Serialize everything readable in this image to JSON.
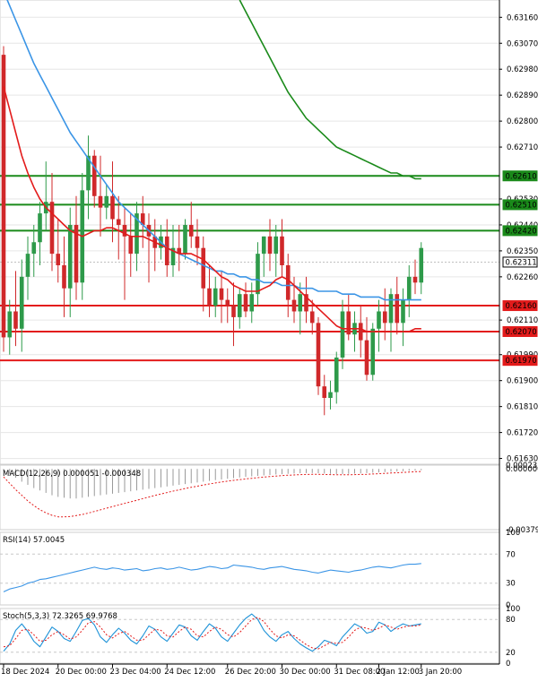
{
  "chart_data": {
    "type": "candlestick",
    "colors": {
      "bull": "#2e9a4a",
      "bear": "#d0282a",
      "ma_fast": "#e31b1b",
      "ma_mid": "#3b95e6",
      "ma_slow": "#1a8a1a",
      "resistance": "#1a8a1a",
      "support": "#e31b1b",
      "macd_hist": "#9a9a9a",
      "macd_signal": "#e31b1b",
      "rsi": "#3b95e6",
      "stoch_main": "#1f93d8",
      "stoch_signal": "#e31b1b",
      "grid": "#e6e6e6"
    },
    "price_axis": {
      "ylim": [
        0.6161,
        0.6322
      ],
      "ticks": [
        "0.63160",
        "0.63070",
        "0.62980",
        "0.62890",
        "0.62800",
        "0.62710",
        "0.62530",
        "0.62440",
        "0.62350",
        "0.62260",
        "0.62110",
        "0.61990",
        "0.61900",
        "0.61810",
        "0.61720",
        "0.61630"
      ]
    },
    "price_labels": [
      {
        "text": "0.62610",
        "value": 0.6261,
        "color": "#1a8a1a"
      },
      {
        "text": "0.62510",
        "value": 0.6251,
        "color": "#1a8a1a"
      },
      {
        "text": "0.62420",
        "value": 0.6242,
        "color": "#1a8a1a"
      },
      {
        "text": "0.62311",
        "value": 0.62311,
        "color": "#ffffff"
      },
      {
        "text": "0.62160",
        "value": 0.6216,
        "color": "#e31b1b"
      },
      {
        "text": "0.62070",
        "value": 0.6207,
        "color": "#e31b1b"
      },
      {
        "text": "0.61970",
        "value": 0.6197,
        "color": "#e31b1b"
      }
    ],
    "resistance_levels": [
      0.6261,
      0.6251,
      0.6242
    ],
    "support_levels": [
      0.6216,
      0.6207,
      0.6197
    ],
    "current_price": 0.62311,
    "candles": [
      [
        0.6303,
        0.6306,
        0.62,
        0.6205
      ],
      [
        0.6205,
        0.6218,
        0.6199,
        0.6214
      ],
      [
        0.6214,
        0.6228,
        0.6202,
        0.6208
      ],
      [
        0.6208,
        0.6232,
        0.62,
        0.6226
      ],
      [
        0.6226,
        0.624,
        0.6218,
        0.6234
      ],
      [
        0.6234,
        0.6244,
        0.6226,
        0.6238
      ],
      [
        0.6238,
        0.6252,
        0.623,
        0.6248
      ],
      [
        0.6248,
        0.6266,
        0.6242,
        0.6252
      ],
      [
        0.6252,
        0.6262,
        0.6228,
        0.6234
      ],
      [
        0.6234,
        0.6246,
        0.6224,
        0.623
      ],
      [
        0.623,
        0.624,
        0.6212,
        0.6222
      ],
      [
        0.6222,
        0.625,
        0.6212,
        0.6244
      ],
      [
        0.6244,
        0.6254,
        0.6218,
        0.6224
      ],
      [
        0.6224,
        0.6262,
        0.6218,
        0.6256
      ],
      [
        0.6256,
        0.6275,
        0.6246,
        0.6268
      ],
      [
        0.6268,
        0.627,
        0.625,
        0.6254
      ],
      [
        0.6254,
        0.6268,
        0.624,
        0.625
      ],
      [
        0.625,
        0.6258,
        0.6246,
        0.6254
      ],
      [
        0.6254,
        0.6266,
        0.6238,
        0.6246
      ],
      [
        0.6246,
        0.6254,
        0.6232,
        0.6244
      ],
      [
        0.6244,
        0.625,
        0.6218,
        0.624
      ],
      [
        0.624,
        0.6248,
        0.6226,
        0.6234
      ],
      [
        0.6234,
        0.6252,
        0.6228,
        0.6248
      ],
      [
        0.6248,
        0.6254,
        0.6236,
        0.6244
      ],
      [
        0.6244,
        0.6248,
        0.6224,
        0.624
      ],
      [
        0.624,
        0.6246,
        0.6228,
        0.6236
      ],
      [
        0.6236,
        0.6244,
        0.6232,
        0.624
      ],
      [
        0.624,
        0.6246,
        0.6226,
        0.623
      ],
      [
        0.623,
        0.6244,
        0.6226,
        0.6236
      ],
      [
        0.6236,
        0.6244,
        0.6228,
        0.6234
      ],
      [
        0.6234,
        0.6246,
        0.6232,
        0.6244
      ],
      [
        0.6244,
        0.6252,
        0.6236,
        0.624
      ],
      [
        0.624,
        0.6246,
        0.623,
        0.6236
      ],
      [
        0.6236,
        0.624,
        0.6214,
        0.6222
      ],
      [
        0.6222,
        0.623,
        0.6212,
        0.6216
      ],
      [
        0.6216,
        0.6226,
        0.6212,
        0.6222
      ],
      [
        0.6222,
        0.6228,
        0.621,
        0.6218
      ],
      [
        0.6218,
        0.6222,
        0.621,
        0.6216
      ],
      [
        0.6216,
        0.6224,
        0.6202,
        0.6212
      ],
      [
        0.6212,
        0.6222,
        0.6208,
        0.622
      ],
      [
        0.622,
        0.6224,
        0.6212,
        0.6214
      ],
      [
        0.6214,
        0.6224,
        0.621,
        0.622
      ],
      [
        0.622,
        0.6238,
        0.6216,
        0.6234
      ],
      [
        0.6234,
        0.624,
        0.6226,
        0.624
      ],
      [
        0.624,
        0.6246,
        0.6228,
        0.6234
      ],
      [
        0.6234,
        0.6244,
        0.6226,
        0.624
      ],
      [
        0.624,
        0.6246,
        0.6226,
        0.623
      ],
      [
        0.623,
        0.6234,
        0.6212,
        0.6218
      ],
      [
        0.6218,
        0.6226,
        0.621,
        0.6214
      ],
      [
        0.6214,
        0.6224,
        0.6206,
        0.622
      ],
      [
        0.622,
        0.6226,
        0.621,
        0.6214
      ],
      [
        0.6214,
        0.6218,
        0.6206,
        0.621
      ],
      [
        0.621,
        0.6212,
        0.6185,
        0.6188
      ],
      [
        0.6188,
        0.6192,
        0.6178,
        0.6184
      ],
      [
        0.6184,
        0.619,
        0.618,
        0.6186
      ],
      [
        0.6186,
        0.62,
        0.6182,
        0.6198
      ],
      [
        0.6198,
        0.6218,
        0.6194,
        0.6214
      ],
      [
        0.6214,
        0.622,
        0.6204,
        0.6206
      ],
      [
        0.6206,
        0.6214,
        0.62,
        0.621
      ],
      [
        0.621,
        0.6216,
        0.6198,
        0.6204
      ],
      [
        0.6204,
        0.6212,
        0.619,
        0.6192
      ],
      [
        0.6192,
        0.621,
        0.619,
        0.6208
      ],
      [
        0.6208,
        0.6218,
        0.62,
        0.6214
      ],
      [
        0.6214,
        0.6222,
        0.6204,
        0.621
      ],
      [
        0.621,
        0.6222,
        0.62,
        0.622
      ],
      [
        0.622,
        0.6226,
        0.6206,
        0.621
      ],
      [
        0.621,
        0.6222,
        0.6202,
        0.6218
      ],
      [
        0.6218,
        0.623,
        0.6212,
        0.6226
      ],
      [
        0.6226,
        0.6232,
        0.622,
        0.6224
      ],
      [
        0.6224,
        0.6238,
        0.622,
        0.6236
      ]
    ],
    "ma_fast": [
      0.6292,
      0.6284,
      0.6276,
      0.6268,
      0.6262,
      0.6257,
      0.6253,
      0.625,
      0.6248,
      0.6246,
      0.6244,
      0.6242,
      0.6241,
      0.624,
      0.6241,
      0.6242,
      0.6242,
      0.6243,
      0.6243,
      0.6242,
      0.6241,
      0.624,
      0.624,
      0.624,
      0.6239,
      0.6238,
      0.6237,
      0.6236,
      0.6235,
      0.6234,
      0.6234,
      0.6234,
      0.6233,
      0.6232,
      0.623,
      0.6228,
      0.6226,
      0.6225,
      0.6223,
      0.6222,
      0.6221,
      0.6221,
      0.6221,
      0.6222,
      0.6223,
      0.6225,
      0.6226,
      0.6225,
      0.6223,
      0.6221,
      0.6219,
      0.6217,
      0.6215,
      0.6213,
      0.6211,
      0.6209,
      0.6208,
      0.6208,
      0.6208,
      0.6208,
      0.6207,
      0.6207,
      0.6207,
      0.6207,
      0.6207,
      0.6207,
      0.6207,
      0.6207,
      0.6208,
      0.6208
    ],
    "ma_mid": [
      0.6325,
      0.632,
      0.6315,
      0.631,
      0.6305,
      0.63,
      0.6296,
      0.6292,
      0.6288,
      0.6284,
      0.628,
      0.6276,
      0.6273,
      0.627,
      0.6267,
      0.6264,
      0.6261,
      0.6258,
      0.6255,
      0.6252,
      0.625,
      0.6248,
      0.6246,
      0.6244,
      0.6242,
      0.624,
      0.6238,
      0.6236,
      0.6235,
      0.6234,
      0.6233,
      0.6232,
      0.6231,
      0.623,
      0.6229,
      0.6228,
      0.6228,
      0.6227,
      0.6227,
      0.6226,
      0.6226,
      0.6225,
      0.6225,
      0.6224,
      0.6224,
      0.6224,
      0.6223,
      0.6223,
      0.6223,
      0.6222,
      0.6222,
      0.6222,
      0.6221,
      0.6221,
      0.6221,
      0.6221,
      0.622,
      0.622,
      0.622,
      0.6219,
      0.6219,
      0.6219,
      0.6219,
      0.6218,
      0.6218,
      0.6218,
      0.6218,
      0.6218,
      0.6218,
      0.6218
    ],
    "ma_slow_span": [
      39,
      69
    ],
    "ma_slow": [
      0.6322,
      0.6318,
      0.6314,
      0.631,
      0.6306,
      0.6302,
      0.6298,
      0.6294,
      0.629,
      0.6287,
      0.6284,
      0.6281,
      0.6279,
      0.6277,
      0.6275,
      0.6273,
      0.6271,
      0.627,
      0.6269,
      0.6268,
      0.6267,
      0.6266,
      0.6265,
      0.6264,
      0.6263,
      0.6262,
      0.6262,
      0.6261,
      0.6261,
      0.626,
      0.626
    ],
    "macd": {
      "label": "MACD(12,26,9) 0.000051 -0.000348",
      "ylim": [
        -0.003799,
        0.000235
      ],
      "ticks": [
        "0.000235",
        "0.000000",
        "-0.003799"
      ],
      "hist": [
        -0.0001,
        -0.0003,
        -0.00055,
        -0.0008,
        -0.001,
        -0.0012,
        -0.00135,
        -0.0015,
        -0.00165,
        -0.00175,
        -0.0018,
        -0.00185,
        -0.00185,
        -0.0018,
        -0.00175,
        -0.0017,
        -0.00165,
        -0.0016,
        -0.00155,
        -0.0015,
        -0.00145,
        -0.0014,
        -0.00135,
        -0.0013,
        -0.00125,
        -0.0012,
        -0.00115,
        -0.0011,
        -0.00105,
        -0.001,
        -0.00095,
        -0.0009,
        -0.00085,
        -0.0008,
        -0.00075,
        -0.0007,
        -0.00066,
        -0.00062,
        -0.00058,
        -0.00054,
        -0.0005,
        -0.00047,
        -0.00044,
        -0.00041,
        -0.00038,
        -0.00035,
        -0.00033,
        -0.00031,
        -0.00029,
        -0.00027,
        -0.00026,
        -0.00026,
        -0.00027,
        -0.00029,
        -0.00031,
        -0.00032,
        -0.00032,
        -0.00031,
        -0.0003,
        -0.00028,
        -0.00026,
        -0.00024,
        -0.00022,
        -0.0002,
        -0.00018,
        -0.00016,
        -0.00014,
        -0.00012,
        -0.0001,
        -8e-05
      ],
      "signal": [
        -0.0005,
        -0.0009,
        -0.0013,
        -0.00165,
        -0.002,
        -0.0023,
        -0.00255,
        -0.00275,
        -0.0029,
        -0.003,
        -0.003,
        -0.00298,
        -0.00292,
        -0.00285,
        -0.00276,
        -0.00266,
        -0.00256,
        -0.00246,
        -0.00236,
        -0.00226,
        -0.00216,
        -0.00206,
        -0.00196,
        -0.00186,
        -0.00176,
        -0.00166,
        -0.00157,
        -0.00148,
        -0.00139,
        -0.00131,
        -0.00123,
        -0.00115,
        -0.00108,
        -0.00101,
        -0.00094,
        -0.00088,
        -0.00082,
        -0.00077,
        -0.00072,
        -0.00067,
        -0.00063,
        -0.00059,
        -0.00055,
        -0.00051,
        -0.00048,
        -0.00045,
        -0.00042,
        -0.0004,
        -0.00038,
        -0.00036,
        -0.00035,
        -0.00034,
        -0.00034,
        -0.00035,
        -0.00036,
        -0.00037,
        -0.00037,
        -0.00037,
        -0.00036,
        -0.00035,
        -0.00034,
        -0.00032,
        -0.0003,
        -0.00028,
        -0.00026,
        -0.00024,
        -0.00022,
        -0.0002,
        -0.00018,
        -0.00016
      ]
    },
    "rsi": {
      "label": "RSI(14) 57.0045",
      "ylim": [
        0,
        100
      ],
      "ticks": [
        "100",
        "70",
        "30",
        "0"
      ],
      "values": [
        18,
        22,
        24,
        26,
        30,
        32,
        35,
        36,
        38,
        40,
        42,
        44,
        46,
        48,
        50,
        52,
        50,
        49,
        51,
        50,
        48,
        49,
        50,
        47,
        48,
        50,
        51,
        49,
        50,
        52,
        50,
        48,
        49,
        51,
        53,
        52,
        50,
        51,
        55,
        54,
        53,
        52,
        50,
        49,
        51,
        52,
        53,
        51,
        49,
        48,
        47,
        45,
        44,
        46,
        48,
        47,
        46,
        45,
        47,
        48,
        50,
        52,
        53,
        52,
        51,
        53,
        55,
        56,
        56,
        57
      ]
    },
    "stoch": {
      "label": "Stoch(5,3,3) 72.3265 69.9768",
      "ylim": [
        0,
        100
      ],
      "ticks": [
        "100",
        "80",
        "20",
        "0"
      ],
      "main": [
        22,
        35,
        60,
        72,
        58,
        40,
        30,
        48,
        66,
        58,
        45,
        40,
        58,
        78,
        82,
        70,
        48,
        38,
        52,
        64,
        55,
        42,
        35,
        50,
        68,
        62,
        48,
        40,
        55,
        70,
        66,
        50,
        42,
        58,
        72,
        64,
        48,
        40,
        55,
        70,
        82,
        90,
        80,
        60,
        48,
        40,
        52,
        58,
        45,
        35,
        28,
        22,
        30,
        42,
        38,
        32,
        48,
        60,
        72,
        66,
        55,
        58,
        75,
        70,
        58,
        66,
        72,
        68,
        70,
        72
      ],
      "signal": [
        30,
        32,
        45,
        60,
        62,
        52,
        40,
        42,
        52,
        58,
        52,
        44,
        48,
        60,
        74,
        76,
        66,
        52,
        46,
        54,
        58,
        50,
        42,
        42,
        52,
        62,
        60,
        50,
        48,
        58,
        66,
        62,
        50,
        48,
        58,
        66,
        62,
        52,
        48,
        56,
        68,
        80,
        84,
        76,
        62,
        50,
        46,
        52,
        50,
        42,
        34,
        28,
        26,
        32,
        38,
        36,
        38,
        48,
        60,
        66,
        64,
        60,
        64,
        70,
        66,
        62,
        66,
        68,
        68,
        70
      ]
    },
    "time_labels": [
      {
        "text": "18 Dec 2024",
        "index": 0
      },
      {
        "text": "20 Dec 00:00",
        "index": 9
      },
      {
        "text": "23 Dec 04:00",
        "index": 18
      },
      {
        "text": "24 Dec 12:00",
        "index": 27
      },
      {
        "text": "26 Dec 20:00",
        "index": 37
      },
      {
        "text": "30 Dec 00:00",
        "index": 46
      },
      {
        "text": "31 Dec 08:00",
        "index": 55
      },
      {
        "text": "2 Jan 12:00",
        "index": 62
      },
      {
        "text": "3 Jan 20:00",
        "index": 69
      }
    ]
  }
}
